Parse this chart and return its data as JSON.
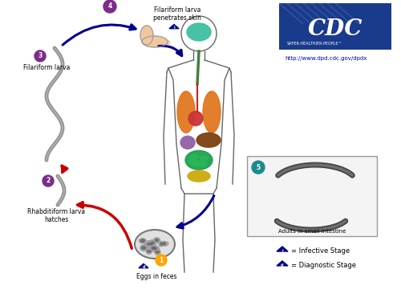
{
  "background_color": "#ffffff",
  "blue": "#00008B",
  "red": "#CC0000",
  "labels": {
    "1": "Eggs in feces",
    "2": "Rhabditiform larva\nhatches",
    "3": "Filariform larva",
    "4": "Filariform larva\npenetrates skin",
    "5": "Adults in small intestine"
  },
  "legend_infective": "= Infective Stage",
  "legend_diagnostic": "= Diagnostic Stage",
  "cdc_url": "http://www.dpd.cdc.gov/dpdx",
  "circle_colors": {
    "1": "#FFA500",
    "2": "#7B2D8B",
    "3": "#7B2D8B",
    "4": "#7B2D8B",
    "5": "#1A8C8C"
  },
  "body_color": "#888888",
  "organ_brain": "#3DBFA0",
  "organ_lung": "#E07820",
  "organ_heart": "#CC3333",
  "organ_liver": "#7B4010",
  "organ_stomach": "#9060A8",
  "organ_intestine": "#20A050",
  "organ_lower": "#C8A800",
  "worm_color": "#888888",
  "skin_color": "#F0C8A0"
}
